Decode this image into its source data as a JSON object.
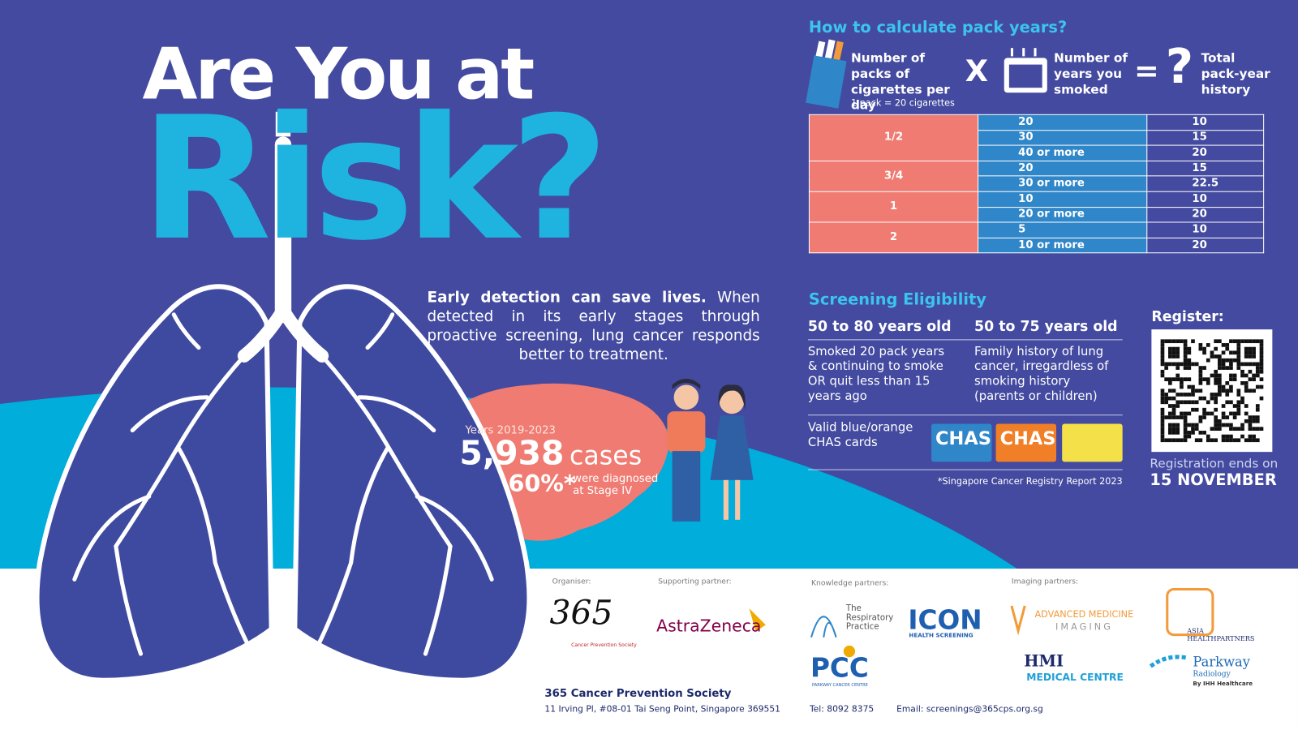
{
  "headline": {
    "line1": "Are You at",
    "line2": "Risk?"
  },
  "intro": {
    "bold": "Early detection can save lives.",
    "text": "When detected in its early stages through proactive screening, lung cancer responds better to treatment."
  },
  "stats": {
    "period": "Years 2019-2023",
    "cases_number": "5,938",
    "cases_label": "cases",
    "percent": "60%*",
    "percent_label": "were diagnosed at Stage IV"
  },
  "pack_years": {
    "title": "How to calculate pack years?",
    "factor1": "Number of packs of cigarettes per day",
    "factor1_note": "1 pack = 20 cigarettes",
    "times": "X",
    "factor2": "Number of years you smoked",
    "equals": "=",
    "result_mark": "?",
    "result": "Total pack-year history",
    "table": [
      {
        "packs": "1/2",
        "years": [
          "20",
          "30",
          "40 or more"
        ],
        "totals": [
          "10",
          "15",
          "20"
        ]
      },
      {
        "packs": "3/4",
        "years": [
          "20",
          "30 or more"
        ],
        "totals": [
          "15",
          "22.5"
        ]
      },
      {
        "packs": "1",
        "years": [
          "10",
          "20 or more"
        ],
        "totals": [
          "10",
          "20"
        ]
      },
      {
        "packs": "2",
        "years": [
          "5",
          "10 or more"
        ],
        "totals": [
          "10",
          "20"
        ]
      }
    ]
  },
  "eligibility": {
    "title": "Screening Eligibility",
    "group1": {
      "age": "50 to 80 years old",
      "criteria": "Smoked 20 pack years & continuing to smoke OR quit less than 15 years ago"
    },
    "group2": {
      "age": "50 to 75 years old",
      "criteria": "Family history of lung cancer, irregardless of smoking history (parents or children)"
    },
    "chas": "Valid blue/orange CHAS cards",
    "chas_card_blue": "CHAS",
    "chas_card_orange": "CHAS",
    "footnote": "*Singapore Cancer Registry Report 2023"
  },
  "register": {
    "title": "Register:",
    "ends": "Registration ends on",
    "date": "15 NOVEMBER"
  },
  "partners": {
    "organiser_label": "Organiser:",
    "supporting_label": "Supporting partner:",
    "knowledge_label": "Knowledge partners:",
    "imaging_label": "Imaging partners:",
    "logo_365": "365",
    "logo_365_sub": "Cancer Prevention Society",
    "logo_astrazeneca": "AstraZeneca",
    "logo_respiratory": "The Respiratory Practice",
    "logo_icon": "ICON",
    "logo_icon_sub": "HEALTH SCREENING",
    "logo_pcc": "PCC",
    "logo_pcc_sub": "PARKWAY CANCER CENTRE",
    "logo_ami": "ADVANCED MEDICINE",
    "logo_ami_sub": "IMAGING",
    "logo_asia": "ASIA HEALTHPARTNERS",
    "logo_hmi": "HMI",
    "logo_hmi_sub": "MEDICAL CENTRE",
    "logo_parkway": "Parkway",
    "logo_parkway_sub": "Radiology",
    "logo_parkway_by": "By IHH Healthcare"
  },
  "footer": {
    "org": "365 Cancer Prevention Society",
    "address": "11 Irving Pl, #08-01 Tai Seng Point, Singapore 369551",
    "tel": "Tel: 8092 8375",
    "email": "Email: screenings@365cps.org.sg"
  }
}
